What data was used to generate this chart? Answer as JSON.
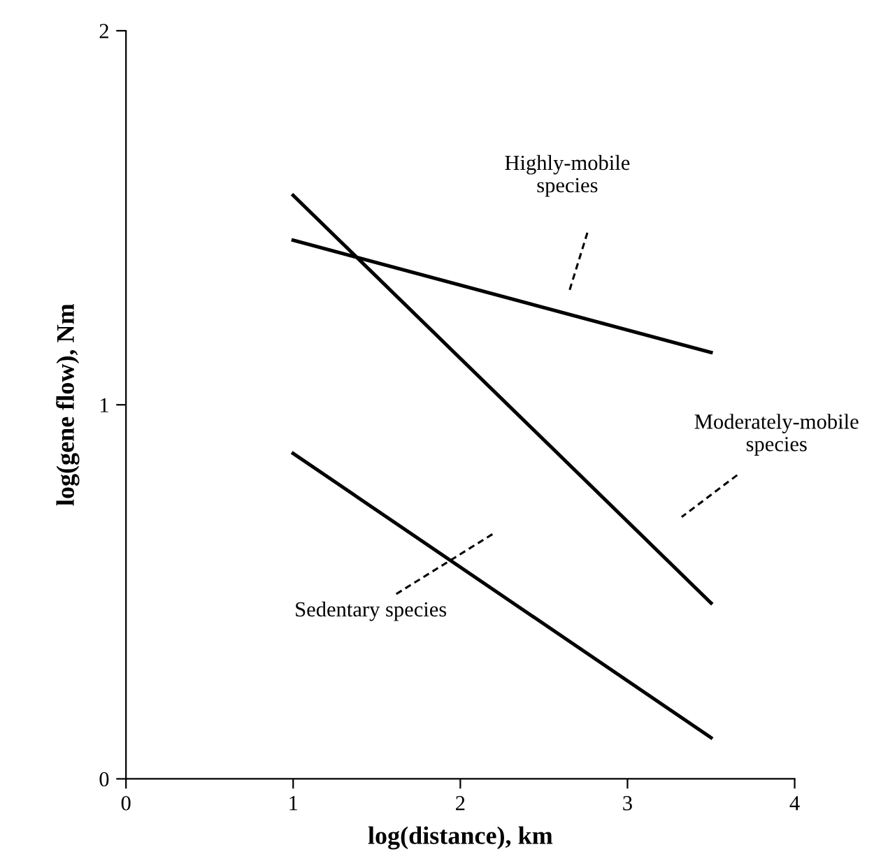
{
  "chart_data": {
    "type": "line",
    "xlabel": "log(distance), km",
    "ylabel": "log(gene flow), Nm",
    "xlim": [
      0,
      4
    ],
    "ylim": [
      0,
      2
    ],
    "xticks": [
      0,
      1,
      2,
      3,
      4
    ],
    "yticks": [
      0,
      1,
      2
    ],
    "grid": false,
    "legend": false,
    "marker": "none",
    "line_style": "solid",
    "x": [
      1,
      3.5
    ],
    "series": [
      {
        "color": "#000000",
        "values": [
          1.44,
          1.14
        ]
      },
      {
        "color": "#000000",
        "values": [
          1.56,
          0.47
        ]
      },
      {
        "color": "#000000",
        "values": [
          0.87,
          0.11
        ]
      }
    ],
    "annotations": [
      "Highly-mobile species",
      "Moderately-mobile species",
      "Sedentary species"
    ]
  }
}
